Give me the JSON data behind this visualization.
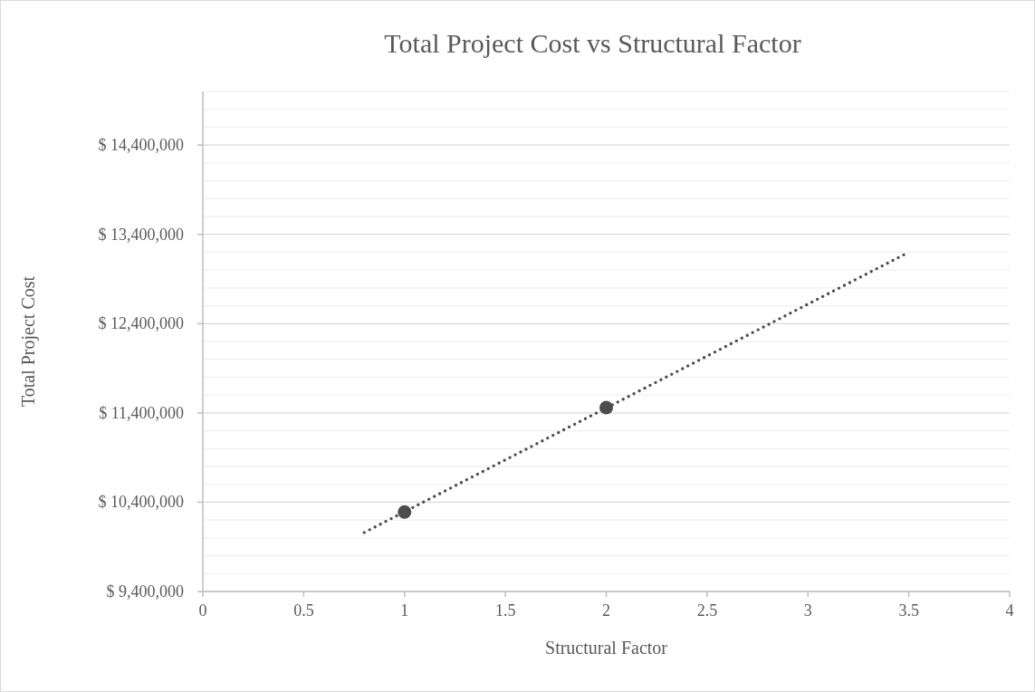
{
  "chart_data": {
    "type": "scatter",
    "title": "Total Project Cost vs Structural Factor",
    "xlabel": "Structural Factor",
    "ylabel": "Total Project Cost",
    "xlim": [
      0,
      4
    ],
    "xticks": [
      0,
      0.5,
      1,
      1.5,
      2,
      2.5,
      3,
      3.5,
      4
    ],
    "ylim": [
      9400000,
      15000000
    ],
    "yticks": [
      {
        "value": 9400000,
        "label": "$ 9,400,000"
      },
      {
        "value": 9600000,
        "label": null
      },
      {
        "value": 9800000,
        "label": null
      },
      {
        "value": 10000000,
        "label": null
      },
      {
        "value": 10200000,
        "label": null
      },
      {
        "value": 10400000,
        "label": "$ 10,400,000"
      },
      {
        "value": 10600000,
        "label": null
      },
      {
        "value": 10800000,
        "label": null
      },
      {
        "value": 11000000,
        "label": null
      },
      {
        "value": 11200000,
        "label": null
      },
      {
        "value": 11400000,
        "label": "$ 11,400,000"
      },
      {
        "value": 11600000,
        "label": null
      },
      {
        "value": 11800000,
        "label": null
      },
      {
        "value": 12000000,
        "label": null
      },
      {
        "value": 12200000,
        "label": null
      },
      {
        "value": 12400000,
        "label": "$ 12,400,000"
      },
      {
        "value": 12600000,
        "label": null
      },
      {
        "value": 12800000,
        "label": null
      },
      {
        "value": 13000000,
        "label": null
      },
      {
        "value": 13200000,
        "label": null
      },
      {
        "value": 13400000,
        "label": "$ 13,400,000"
      },
      {
        "value": 13600000,
        "label": null
      },
      {
        "value": 13800000,
        "label": null
      },
      {
        "value": 14000000,
        "label": null
      },
      {
        "value": 14200000,
        "label": null
      },
      {
        "value": 14400000,
        "label": "$ 14,400,000"
      },
      {
        "value": 14600000,
        "label": null
      },
      {
        "value": 14800000,
        "label": null
      },
      {
        "value": 15000000,
        "label": null
      }
    ],
    "grid": "y",
    "marker": "circle",
    "series": [
      {
        "color": "#4d4d4d",
        "x": [
          1,
          2
        ],
        "values": [
          10290000,
          11460000
        ]
      },
      {
        "type": "line",
        "color": "#4d4d4d",
        "line_style": "dotted",
        "marker": "none",
        "x": [
          0.8,
          3.5
        ],
        "values": [
          10060000,
          13200000
        ]
      }
    ]
  }
}
